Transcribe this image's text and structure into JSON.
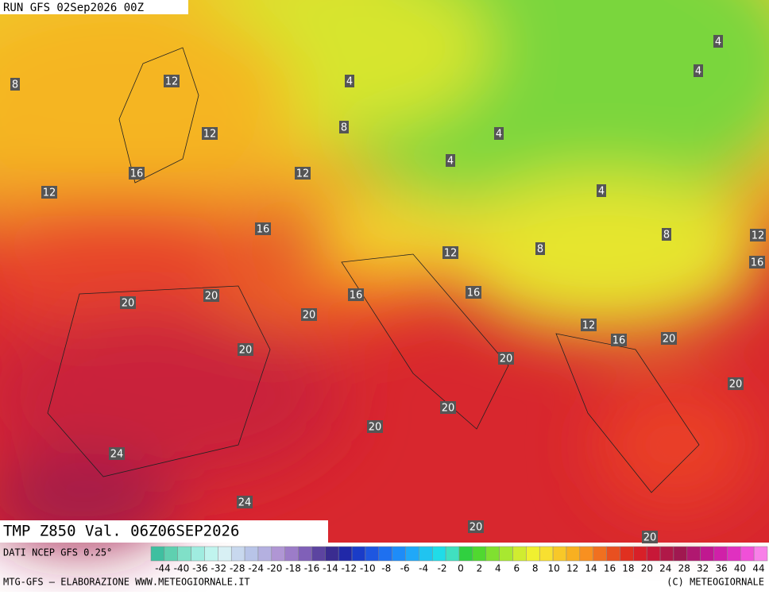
{
  "header": {
    "run": "RUN GFS 02Sep2026 00Z"
  },
  "map": {
    "contour_labels": [
      "8",
      "12",
      "4",
      "4",
      "4",
      "8",
      "12",
      "4",
      "16",
      "12",
      "4",
      "12",
      "4",
      "16",
      "8",
      "12",
      "12",
      "8",
      "16",
      "20",
      "20",
      "16",
      "16",
      "20",
      "12",
      "16",
      "20",
      "20",
      "20",
      "20",
      "20",
      "20",
      "24",
      "24",
      "20",
      "20"
    ]
  },
  "footer": {
    "title": "TMP Z850 Val. 06Z06SEP2026",
    "source": "DATI NCEP GFS 0.25°",
    "credits": "MTG-GFS – ELABORAZIONE WWW.METEOGIORNALE.IT",
    "copyright": "(C) METEOGIORNALE",
    "scale_labels": [
      -44,
      -40,
      -36,
      -32,
      -28,
      -24,
      -20,
      -18,
      -16,
      -14,
      -12,
      -10,
      -8,
      -6,
      -4,
      -2,
      0,
      2,
      4,
      6,
      8,
      10,
      12,
      14,
      16,
      18,
      20,
      24,
      28,
      32,
      36,
      40,
      44
    ]
  }
}
